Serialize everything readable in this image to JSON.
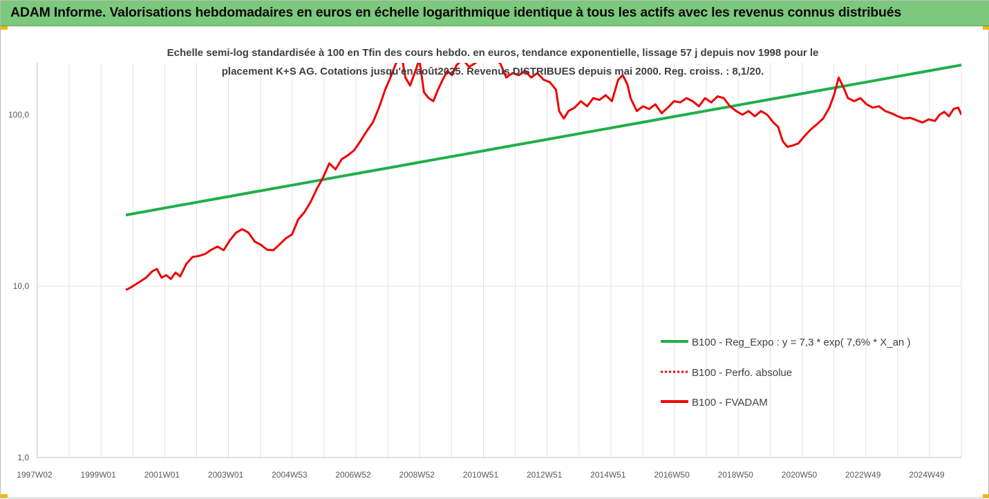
{
  "header": {
    "title": "ADAM Informe. Valorisations hebdomadaires en euros en échelle logarithmique identique à tous les actifs avec les revenus connus distribués"
  },
  "colors": {
    "header_bg": "#7cc87c",
    "trend": "#1fae4c",
    "fvadam": "#ee0000",
    "perfo": "#ee0000",
    "grid": "#e3e3e3",
    "accent_corners": "#f5b800"
  },
  "chart_data": {
    "type": "line",
    "title_lines": [
      "Echelle semi-log standardisée à 100 en Tfin des cours hebdo. en euros, tendance exponentielle, lissage 57 j depuis nov 1998 pour le",
      "placement K+S AG. Cotations jusqu'en août2025. Revenus DISTRIBUES depuis mai 2000. Reg. croiss. : 8,1/20."
    ],
    "y_scale": "log",
    "ylim": [
      1,
      200
    ],
    "y_ticks": [
      "1,0",
      "10,0",
      "100,0"
    ],
    "x_tick_labels": [
      "1997W02",
      "1999W01",
      "2001W01",
      "2003W01",
      "2004W53",
      "2006W52",
      "2008W52",
      "2010W51",
      "2012W51",
      "2014W51",
      "2016W50",
      "2018W50",
      "2020W50",
      "2022W49",
      "2024W49"
    ],
    "x_range": [
      1996.0,
      2025.75
    ],
    "grid": "vertical",
    "legend_position": "center-right",
    "series": [
      {
        "name": "B100 - Reg_Expo : y = 7,3 * exp( 7,6% *  X_an )",
        "style": "solid-green",
        "x": [
          1998.85,
          2025.75
        ],
        "y": [
          26,
          195
        ]
      },
      {
        "name": "B100 - Perfo. absolue",
        "style": "dotted-red",
        "x": [],
        "y": []
      },
      {
        "name": "B100 - FVADAM",
        "style": "solid-red",
        "x": [
          1998.85,
          1999.0,
          1999.15,
          1999.3,
          1999.5,
          1999.7,
          1999.85,
          2000.0,
          2000.15,
          2000.3,
          2000.45,
          2000.6,
          2000.8,
          2001.0,
          2001.2,
          2001.4,
          2001.6,
          2001.8,
          2002.0,
          2002.2,
          2002.4,
          2002.6,
          2002.8,
          2003.0,
          2003.2,
          2003.4,
          2003.6,
          2003.8,
          2004.0,
          2004.2,
          2004.4,
          2004.6,
          2004.8,
          2005.0,
          2005.2,
          2005.4,
          2005.6,
          2005.8,
          2006.0,
          2006.2,
          2006.4,
          2006.6,
          2006.8,
          2007.0,
          2007.2,
          2007.4,
          2007.55,
          2007.7,
          2007.85,
          2008.0,
          2008.15,
          2008.3,
          2008.45,
          2008.6,
          2008.75,
          2008.9,
          2009.05,
          2009.2,
          2009.35,
          2009.5,
          2009.7,
          2009.9,
          2010.1,
          2010.3,
          2010.5,
          2010.7,
          2010.9,
          2011.1,
          2011.3,
          2011.5,
          2011.7,
          2011.9,
          2012.1,
          2012.3,
          2012.5,
          2012.7,
          2012.8,
          2012.95,
          2013.1,
          2013.3,
          2013.5,
          2013.7,
          2013.9,
          2014.1,
          2014.3,
          2014.5,
          2014.7,
          2014.85,
          2015.0,
          2015.1,
          2015.3,
          2015.5,
          2015.7,
          2015.9,
          2016.1,
          2016.3,
          2016.5,
          2016.7,
          2016.9,
          2017.1,
          2017.3,
          2017.5,
          2017.7,
          2017.9,
          2018.1,
          2018.3,
          2018.5,
          2018.7,
          2018.9,
          2019.1,
          2019.3,
          2019.5,
          2019.7,
          2019.85,
          2020.0,
          2020.15,
          2020.3,
          2020.5,
          2020.7,
          2020.9,
          2021.1,
          2021.3,
          2021.5,
          2021.65,
          2021.8,
          2021.95,
          2022.1,
          2022.3,
          2022.5,
          2022.7,
          2022.9,
          2023.1,
          2023.3,
          2023.5,
          2023.7,
          2023.9,
          2024.1,
          2024.3,
          2024.5,
          2024.7,
          2024.9,
          2025.05,
          2025.2,
          2025.35,
          2025.5,
          2025.65,
          2025.75
        ],
        "y": [
          9.5,
          9.8,
          10.2,
          10.6,
          11.2,
          12.2,
          12.6,
          11.2,
          11.6,
          11.0,
          12.0,
          11.4,
          13.5,
          14.8,
          15.0,
          15.4,
          16.3,
          17.0,
          16.2,
          18.5,
          20.5,
          21.5,
          20.5,
          18.2,
          17.4,
          16.3,
          16.2,
          17.5,
          19.0,
          20.0,
          24.5,
          27.0,
          31.0,
          37.0,
          43.0,
          52.0,
          48.0,
          55.0,
          58.0,
          62.0,
          70.0,
          80.0,
          90.0,
          110.0,
          140.0,
          170.0,
          200.0,
          235.0,
          165.0,
          148.0,
          175.0,
          210.0,
          135.0,
          125.0,
          120.0,
          140.0,
          160.0,
          180.0,
          170.0,
          195.0,
          210.0,
          190.0,
          200.0,
          215.0,
          240.0,
          210.0,
          200.0,
          165.0,
          175.0,
          170.0,
          180.0,
          165.0,
          175.0,
          160.0,
          155.0,
          140.0,
          105.0,
          95.0,
          105.0,
          110.0,
          120.0,
          112.0,
          125.0,
          122.0,
          130.0,
          120.0,
          160.0,
          170.0,
          150.0,
          125.0,
          105.0,
          112.0,
          108.0,
          115.0,
          102.0,
          110.0,
          120.0,
          118.0,
          125.0,
          120.0,
          112.0,
          125.0,
          118.0,
          128.0,
          125.0,
          112.0,
          105.0,
          100.0,
          105.0,
          98.0,
          105.0,
          100.0,
          90.0,
          85.0,
          70.0,
          65.0,
          66.0,
          68.0,
          75.0,
          82.0,
          88.0,
          95.0,
          110.0,
          130.0,
          165.0,
          145.0,
          125.0,
          120.0,
          125.0,
          115.0,
          110.0,
          112.0,
          105.0,
          102.0,
          98.0,
          95.0,
          96.0,
          93.0,
          90.0,
          94.0,
          92.0,
          100.0,
          104.0,
          98.0,
          108.0,
          110.0,
          100.0
        ]
      }
    ]
  }
}
